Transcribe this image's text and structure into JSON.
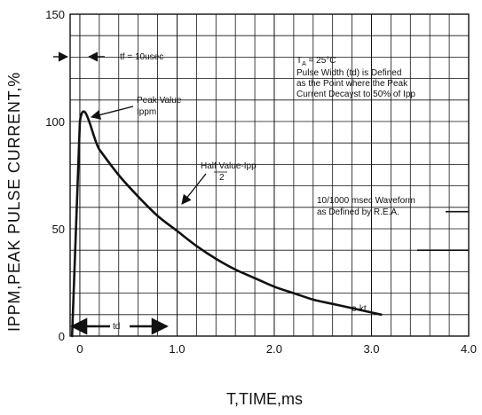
{
  "chart_data": {
    "type": "line",
    "xlabel": "T,TIME,ms",
    "ylabel": "IPPM,PEAK PULSE  CURRENT,%",
    "xlim": [
      -0.1,
      4.0
    ],
    "ylim": [
      0,
      150
    ],
    "x_ticks": [
      0,
      1.0,
      2.0,
      3.0,
      4.0
    ],
    "x_tick_labels": [
      "0",
      "1.0",
      "2.0",
      "3.0",
      "4.0"
    ],
    "y_ticks": [
      0,
      50,
      100,
      150
    ],
    "y_tick_labels": [
      "0",
      "50",
      "100",
      "150"
    ],
    "grid": true,
    "series": [
      {
        "x": [
          -0.08,
          0.0,
          0.2,
          0.4,
          0.6,
          0.8,
          1.0,
          1.2,
          1.4,
          1.6,
          1.8,
          2.0,
          2.2,
          2.4,
          2.6,
          2.8,
          3.0,
          3.1
        ],
        "y": [
          0,
          100,
          87,
          75,
          65,
          56,
          49,
          42,
          36,
          31,
          27,
          23,
          20,
          17,
          15,
          13,
          11,
          10
        ]
      }
    ],
    "annotations": {
      "tf_label": "tf = 10usec",
      "condition_line1": "T",
      "condition_subscript": "A",
      "condition_line1_rest": " = 25°C",
      "condition_line2": "Pulse Width (td) is Defined",
      "condition_line3": "as the Point where the Peak",
      "condition_line4": "Current Decayst to 50% of Ipp",
      "peak_line1": "Peak Value",
      "peak_line2": "Ippm",
      "half_line1": "Half Value-Ipp",
      "half_line2": "2",
      "waveform_line1": "10/1000 msec Waveform",
      "waveform_line2": "as Defined by R.E.A.",
      "ekt": "e-kt",
      "td": "td"
    },
    "colors": {
      "ink": "#111111",
      "grid": "#111111",
      "background": "#ffffff"
    }
  }
}
